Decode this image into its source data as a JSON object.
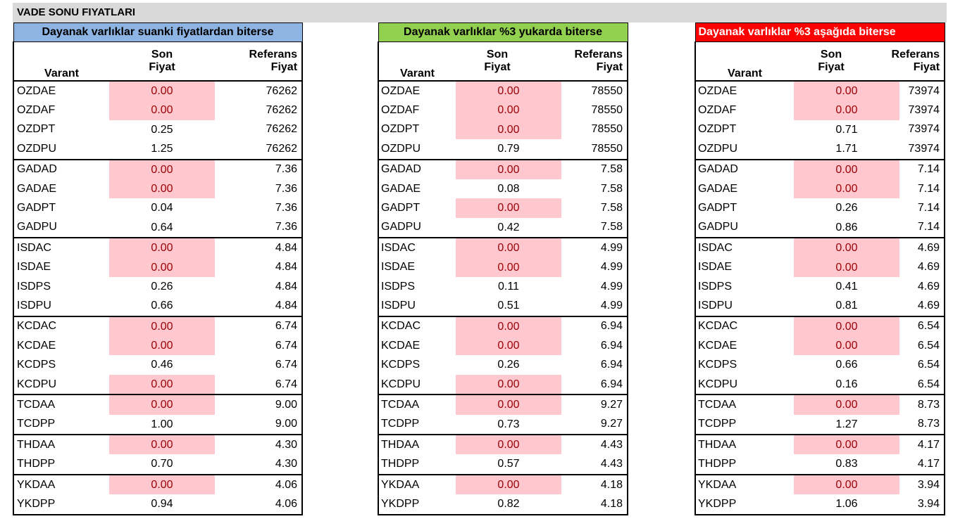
{
  "sheet_title": "VADE SONU FIYATLARI",
  "headers": {
    "varant": "Varant",
    "son_line1": "Son",
    "son_line2": "Fiyat",
    "ref_line1": "Referans",
    "ref_line2": "Fiyat"
  },
  "colors": {
    "zero_fill": "#ffc7ce",
    "zero_text": "#9c0006",
    "title_blue": "#8db4e2",
    "title_green": "#92d050",
    "title_red": "#ff0000"
  },
  "tables": [
    {
      "title": "Dayanak varlıklar suanki fiyatlardan biterse",
      "rows": [
        {
          "varant": "OZDAE",
          "son": "0.00",
          "ref": "76262"
        },
        {
          "varant": "OZDAF",
          "son": "0.00",
          "ref": "76262"
        },
        {
          "varant": "OZDPT",
          "son": "0.25",
          "ref": "76262"
        },
        {
          "varant": "OZDPU",
          "son": "1.25",
          "ref": "76262"
        },
        {
          "varant": "GADAD",
          "son": "0.00",
          "ref": "7.36"
        },
        {
          "varant": "GADAE",
          "son": "0.00",
          "ref": "7.36"
        },
        {
          "varant": "GADPT",
          "son": "0.04",
          "ref": "7.36"
        },
        {
          "varant": "GADPU",
          "son": "0.64",
          "ref": "7.36"
        },
        {
          "varant": "ISDAC",
          "son": "0.00",
          "ref": "4.84"
        },
        {
          "varant": "ISDAE",
          "son": "0.00",
          "ref": "4.84"
        },
        {
          "varant": "ISDPS",
          "son": "0.26",
          "ref": "4.84"
        },
        {
          "varant": "ISDPU",
          "son": "0.66",
          "ref": "4.84"
        },
        {
          "varant": "KCDAC",
          "son": "0.00",
          "ref": "6.74"
        },
        {
          "varant": "KCDAE",
          "son": "0.00",
          "ref": "6.74"
        },
        {
          "varant": "KCDPS",
          "son": "0.46",
          "ref": "6.74"
        },
        {
          "varant": "KCDPU",
          "son": "0.00",
          "ref": "6.74"
        },
        {
          "varant": "TCDAA",
          "son": "0.00",
          "ref": "9.00"
        },
        {
          "varant": "TCDPP",
          "son": "1.00",
          "ref": "9.00"
        },
        {
          "varant": "THDAA",
          "son": "0.00",
          "ref": "4.30"
        },
        {
          "varant": "THDPP",
          "son": "0.70",
          "ref": "4.30"
        },
        {
          "varant": "YKDAA",
          "son": "0.00",
          "ref": "4.06"
        },
        {
          "varant": "YKDPP",
          "son": "0.94",
          "ref": "4.06"
        }
      ]
    },
    {
      "title": "Dayanak varlıklar %3 yukarda biterse",
      "rows": [
        {
          "varant": "OZDAE",
          "son": "0.00",
          "ref": "78550"
        },
        {
          "varant": "OZDAF",
          "son": "0.00",
          "ref": "78550"
        },
        {
          "varant": "OZDPT",
          "son": "0.00",
          "ref": "78550"
        },
        {
          "varant": "OZDPU",
          "son": "0.79",
          "ref": "78550"
        },
        {
          "varant": "GADAD",
          "son": "0.00",
          "ref": "7.58"
        },
        {
          "varant": "GADAE",
          "son": "0.08",
          "ref": "7.58"
        },
        {
          "varant": "GADPT",
          "son": "0.00",
          "ref": "7.58"
        },
        {
          "varant": "GADPU",
          "son": "0.42",
          "ref": "7.58"
        },
        {
          "varant": "ISDAC",
          "son": "0.00",
          "ref": "4.99"
        },
        {
          "varant": "ISDAE",
          "son": "0.00",
          "ref": "4.99"
        },
        {
          "varant": "ISDPS",
          "son": "0.11",
          "ref": "4.99"
        },
        {
          "varant": "ISDPU",
          "son": "0.51",
          "ref": "4.99"
        },
        {
          "varant": "KCDAC",
          "son": "0.00",
          "ref": "6.94"
        },
        {
          "varant": "KCDAE",
          "son": "0.00",
          "ref": "6.94"
        },
        {
          "varant": "KCDPS",
          "son": "0.26",
          "ref": "6.94"
        },
        {
          "varant": "KCDPU",
          "son": "0.00",
          "ref": "6.94"
        },
        {
          "varant": "TCDAA",
          "son": "0.00",
          "ref": "9.27"
        },
        {
          "varant": "TCDPP",
          "son": "0.73",
          "ref": "9.27"
        },
        {
          "varant": "THDAA",
          "son": "0.00",
          "ref": "4.43"
        },
        {
          "varant": "THDPP",
          "son": "0.57",
          "ref": "4.43"
        },
        {
          "varant": "YKDAA",
          "son": "0.00",
          "ref": "4.18"
        },
        {
          "varant": "YKDPP",
          "son": "0.82",
          "ref": "4.18"
        }
      ]
    },
    {
      "title": "Dayanak varlıklar %3 aşağıda biterse",
      "rows": [
        {
          "varant": "OZDAE",
          "son": "0.00",
          "ref": "73974"
        },
        {
          "varant": "OZDAF",
          "son": "0.00",
          "ref": "73974"
        },
        {
          "varant": "OZDPT",
          "son": "0.71",
          "ref": "73974"
        },
        {
          "varant": "OZDPU",
          "son": "1.71",
          "ref": "73974"
        },
        {
          "varant": "GADAD",
          "son": "0.00",
          "ref": "7.14"
        },
        {
          "varant": "GADAE",
          "son": "0.00",
          "ref": "7.14"
        },
        {
          "varant": "GADPT",
          "son": "0.26",
          "ref": "7.14"
        },
        {
          "varant": "GADPU",
          "son": "0.86",
          "ref": "7.14"
        },
        {
          "varant": "ISDAC",
          "son": "0.00",
          "ref": "4.69"
        },
        {
          "varant": "ISDAE",
          "son": "0.00",
          "ref": "4.69"
        },
        {
          "varant": "ISDPS",
          "son": "0.41",
          "ref": "4.69"
        },
        {
          "varant": "ISDPU",
          "son": "0.81",
          "ref": "4.69"
        },
        {
          "varant": "KCDAC",
          "son": "0.00",
          "ref": "6.54"
        },
        {
          "varant": "KCDAE",
          "son": "0.00",
          "ref": "6.54"
        },
        {
          "varant": "KCDPS",
          "son": "0.66",
          "ref": "6.54"
        },
        {
          "varant": "KCDPU",
          "son": "0.16",
          "ref": "6.54"
        },
        {
          "varant": "TCDAA",
          "son": "0.00",
          "ref": "8.73"
        },
        {
          "varant": "TCDPP",
          "son": "1.27",
          "ref": "8.73"
        },
        {
          "varant": "THDAA",
          "son": "0.00",
          "ref": "4.17"
        },
        {
          "varant": "THDPP",
          "son": "0.83",
          "ref": "4.17"
        },
        {
          "varant": "YKDAA",
          "son": "0.00",
          "ref": "3.94"
        },
        {
          "varant": "YKDPP",
          "son": "1.06",
          "ref": "3.94"
        }
      ]
    }
  ]
}
